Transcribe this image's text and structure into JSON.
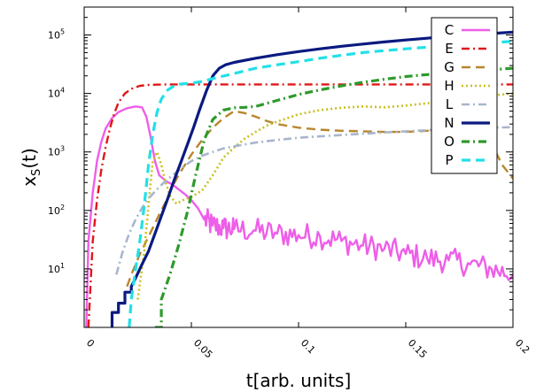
{
  "chart_data": {
    "type": "line",
    "title": "",
    "xlabel": "t[arb. units]",
    "ylabel_base": "x",
    "ylabel_sub": "S",
    "ylabel_tail": "(t)",
    "xlim": [
      0,
      0.2
    ],
    "ylim": [
      1,
      300000
    ],
    "yscale": "log",
    "grid": false,
    "legend_position": "top-right",
    "xticks": [
      {
        "value": 0,
        "label": "0"
      },
      {
        "value": 0.05,
        "label": "0.05"
      },
      {
        "value": 0.1,
        "label": "0.1"
      },
      {
        "value": 0.15,
        "label": "0.15"
      },
      {
        "value": 0.2,
        "label": "0.2"
      }
    ],
    "yticks": [
      {
        "value": 10,
        "base": "10",
        "exp": "1"
      },
      {
        "value": 100,
        "base": "10",
        "exp": "2"
      },
      {
        "value": 1000,
        "base": "10",
        "exp": "3"
      },
      {
        "value": 10000,
        "base": "10",
        "exp": "4"
      },
      {
        "value": 100000,
        "base": "10",
        "exp": "5"
      }
    ],
    "series": [
      {
        "name": "C",
        "color": "#ee5ee8",
        "dash": "solid",
        "width": 2.4,
        "noise": 0.22,
        "noise_from": 0.055,
        "x": [
          0.001,
          0.002,
          0.004,
          0.006,
          0.008,
          0.01,
          0.013,
          0.016,
          0.02,
          0.024,
          0.027,
          0.029,
          0.031,
          0.033,
          0.035,
          0.038,
          0.041,
          0.044,
          0.047,
          0.05,
          0.053,
          0.056,
          0.06,
          0.065,
          0.07,
          0.08,
          0.09,
          0.1,
          0.11,
          0.12,
          0.13,
          0.14,
          0.15,
          0.16,
          0.17,
          0.18,
          0.19,
          0.2
        ],
        "y": [
          1,
          30,
          200,
          700,
          1500,
          2500,
          3800,
          4800,
          5600,
          6000,
          5800,
          4000,
          1800,
          700,
          400,
          320,
          280,
          230,
          190,
          150,
          110,
          70,
          55,
          50,
          48,
          45,
          40,
          38,
          36,
          30,
          25,
          22,
          18,
          15,
          14,
          12,
          10,
          8
        ]
      },
      {
        "name": "E",
        "color": "#e01818",
        "dash": "dashdot",
        "width": 2.4,
        "noise": 0,
        "noise_from": 1,
        "x": [
          0.002,
          0.004,
          0.006,
          0.008,
          0.01,
          0.012,
          0.014,
          0.016,
          0.019,
          0.022,
          0.026,
          0.03,
          0.035,
          0.04,
          0.06,
          0.1,
          0.15,
          0.2
        ],
        "y": [
          1,
          30,
          150,
          500,
          1200,
          2500,
          4500,
          7000,
          10000,
          12000,
          13500,
          14000,
          14200,
          14300,
          14300,
          14300,
          14300,
          14300
        ]
      },
      {
        "name": "G",
        "color": "#b8862c",
        "dash": "dash",
        "width": 2.4,
        "noise": 0,
        "noise_from": 1,
        "x": [
          0.02,
          0.022,
          0.024,
          0.026,
          0.029,
          0.032,
          0.035,
          0.038,
          0.041,
          0.044,
          0.047,
          0.05,
          0.055,
          0.06,
          0.065,
          0.07,
          0.075,
          0.08,
          0.085,
          0.09,
          0.1,
          0.11,
          0.12,
          0.13,
          0.14,
          0.15,
          0.16,
          0.17,
          0.18,
          0.19,
          0.195,
          0.2
        ],
        "y": [
          5,
          8,
          12,
          18,
          30,
          50,
          85,
          140,
          250,
          400,
          600,
          900,
          1600,
          2600,
          3800,
          5000,
          4600,
          4000,
          3400,
          3000,
          2600,
          2400,
          2300,
          2250,
          2200,
          2200,
          2300,
          2500,
          2200,
          1400,
          600,
          350
        ]
      },
      {
        "name": "H",
        "color": "#c9c020",
        "dash": "dotted",
        "width": 2.6,
        "noise": 0,
        "noise_from": 1,
        "x": [
          0.025,
          0.028,
          0.03,
          0.032,
          0.034,
          0.036,
          0.038,
          0.04,
          0.043,
          0.046,
          0.05,
          0.055,
          0.06,
          0.065,
          0.07,
          0.075,
          0.08,
          0.085,
          0.09,
          0.1,
          0.11,
          0.12,
          0.13,
          0.14,
          0.15,
          0.16,
          0.17,
          0.18,
          0.19,
          0.2
        ],
        "y": [
          3,
          20,
          120,
          700,
          1000,
          600,
          300,
          180,
          130,
          150,
          170,
          220,
          400,
          800,
          1200,
          1700,
          2200,
          2800,
          3300,
          4400,
          5200,
          5700,
          6000,
          5800,
          6200,
          6800,
          7600,
          8500,
          9200,
          10000
        ]
      },
      {
        "name": "L",
        "color": "#a8b6cc",
        "dash": "dashdot",
        "width": 2.6,
        "noise": 0,
        "noise_from": 1,
        "x": [
          0.015,
          0.018,
          0.021,
          0.024,
          0.027,
          0.03,
          0.034,
          0.038,
          0.042,
          0.046,
          0.05,
          0.055,
          0.06,
          0.065,
          0.07,
          0.08,
          0.09,
          0.1,
          0.11,
          0.12,
          0.13,
          0.14,
          0.15,
          0.16,
          0.17,
          0.18,
          0.19,
          0.2
        ],
        "y": [
          8,
          20,
          40,
          70,
          110,
          160,
          230,
          320,
          420,
          550,
          700,
          860,
          1000,
          1150,
          1250,
          1450,
          1600,
          1750,
          1850,
          1950,
          2050,
          2150,
          2250,
          2350,
          2450,
          2550,
          2600,
          2650
        ]
      },
      {
        "name": "N",
        "color": "#0a1a80",
        "dash": "solid",
        "width": 3.2,
        "noise": 0,
        "noise_from": 1,
        "x": [
          0.013,
          0.013,
          0.016,
          0.016,
          0.019,
          0.019,
          0.022,
          0.022,
          0.024,
          0.027,
          0.03,
          0.033,
          0.036,
          0.039,
          0.042,
          0.045,
          0.048,
          0.051,
          0.054,
          0.057,
          0.06,
          0.063,
          0.066,
          0.07,
          0.08,
          0.09,
          0.1,
          0.11,
          0.12,
          0.13,
          0.14,
          0.15,
          0.16,
          0.17,
          0.18,
          0.19,
          0.2
        ],
        "y": [
          1,
          1.8,
          1.8,
          2.6,
          2.6,
          4,
          4,
          5,
          7,
          12,
          20,
          40,
          80,
          160,
          330,
          650,
          1300,
          2600,
          5500,
          11000,
          20000,
          27000,
          31000,
          34000,
          40000,
          46000,
          52000,
          58000,
          64000,
          70000,
          76000,
          82000,
          88000,
          95000,
          100000,
          106000,
          112000
        ]
      },
      {
        "name": "O",
        "color": "#2e9a2a",
        "dash": "dashdot",
        "width": 3.2,
        "noise": 0,
        "noise_from": 1,
        "x": [
          0.033,
          0.036,
          0.036,
          0.04,
          0.044,
          0.048,
          0.052,
          0.056,
          0.06,
          0.065,
          0.07,
          0.075,
          0.08,
          0.09,
          0.1,
          0.11,
          0.12,
          0.13,
          0.14,
          0.15,
          0.16,
          0.17,
          0.18,
          0.19,
          0.2
        ],
        "y": [
          1,
          1,
          3,
          8,
          25,
          90,
          400,
          1600,
          3600,
          5200,
          5700,
          5800,
          6000,
          7600,
          9600,
          11500,
          13500,
          15500,
          17500,
          19500,
          21000,
          22500,
          24000,
          25500,
          27000
        ]
      },
      {
        "name": "P",
        "color": "#22e0e8",
        "dash": "dash",
        "width": 3.2,
        "noise": 0,
        "noise_from": 1,
        "x": [
          0.021,
          0.022,
          0.024,
          0.026,
          0.028,
          0.03,
          0.032,
          0.034,
          0.036,
          0.039,
          0.042,
          0.045,
          0.05,
          0.055,
          0.06,
          0.07,
          0.08,
          0.09,
          0.1,
          0.11,
          0.12,
          0.13,
          0.14,
          0.15,
          0.16,
          0.17,
          0.18,
          0.19,
          0.2
        ],
        "y": [
          1,
          3,
          10,
          30,
          120,
          600,
          2000,
          4800,
          8000,
          11500,
          13500,
          14500,
          15000,
          16000,
          18000,
          22000,
          27000,
          31000,
          35000,
          40000,
          45000,
          50000,
          54000,
          58000,
          62000,
          66000,
          70000,
          74000,
          78000
        ]
      }
    ]
  }
}
